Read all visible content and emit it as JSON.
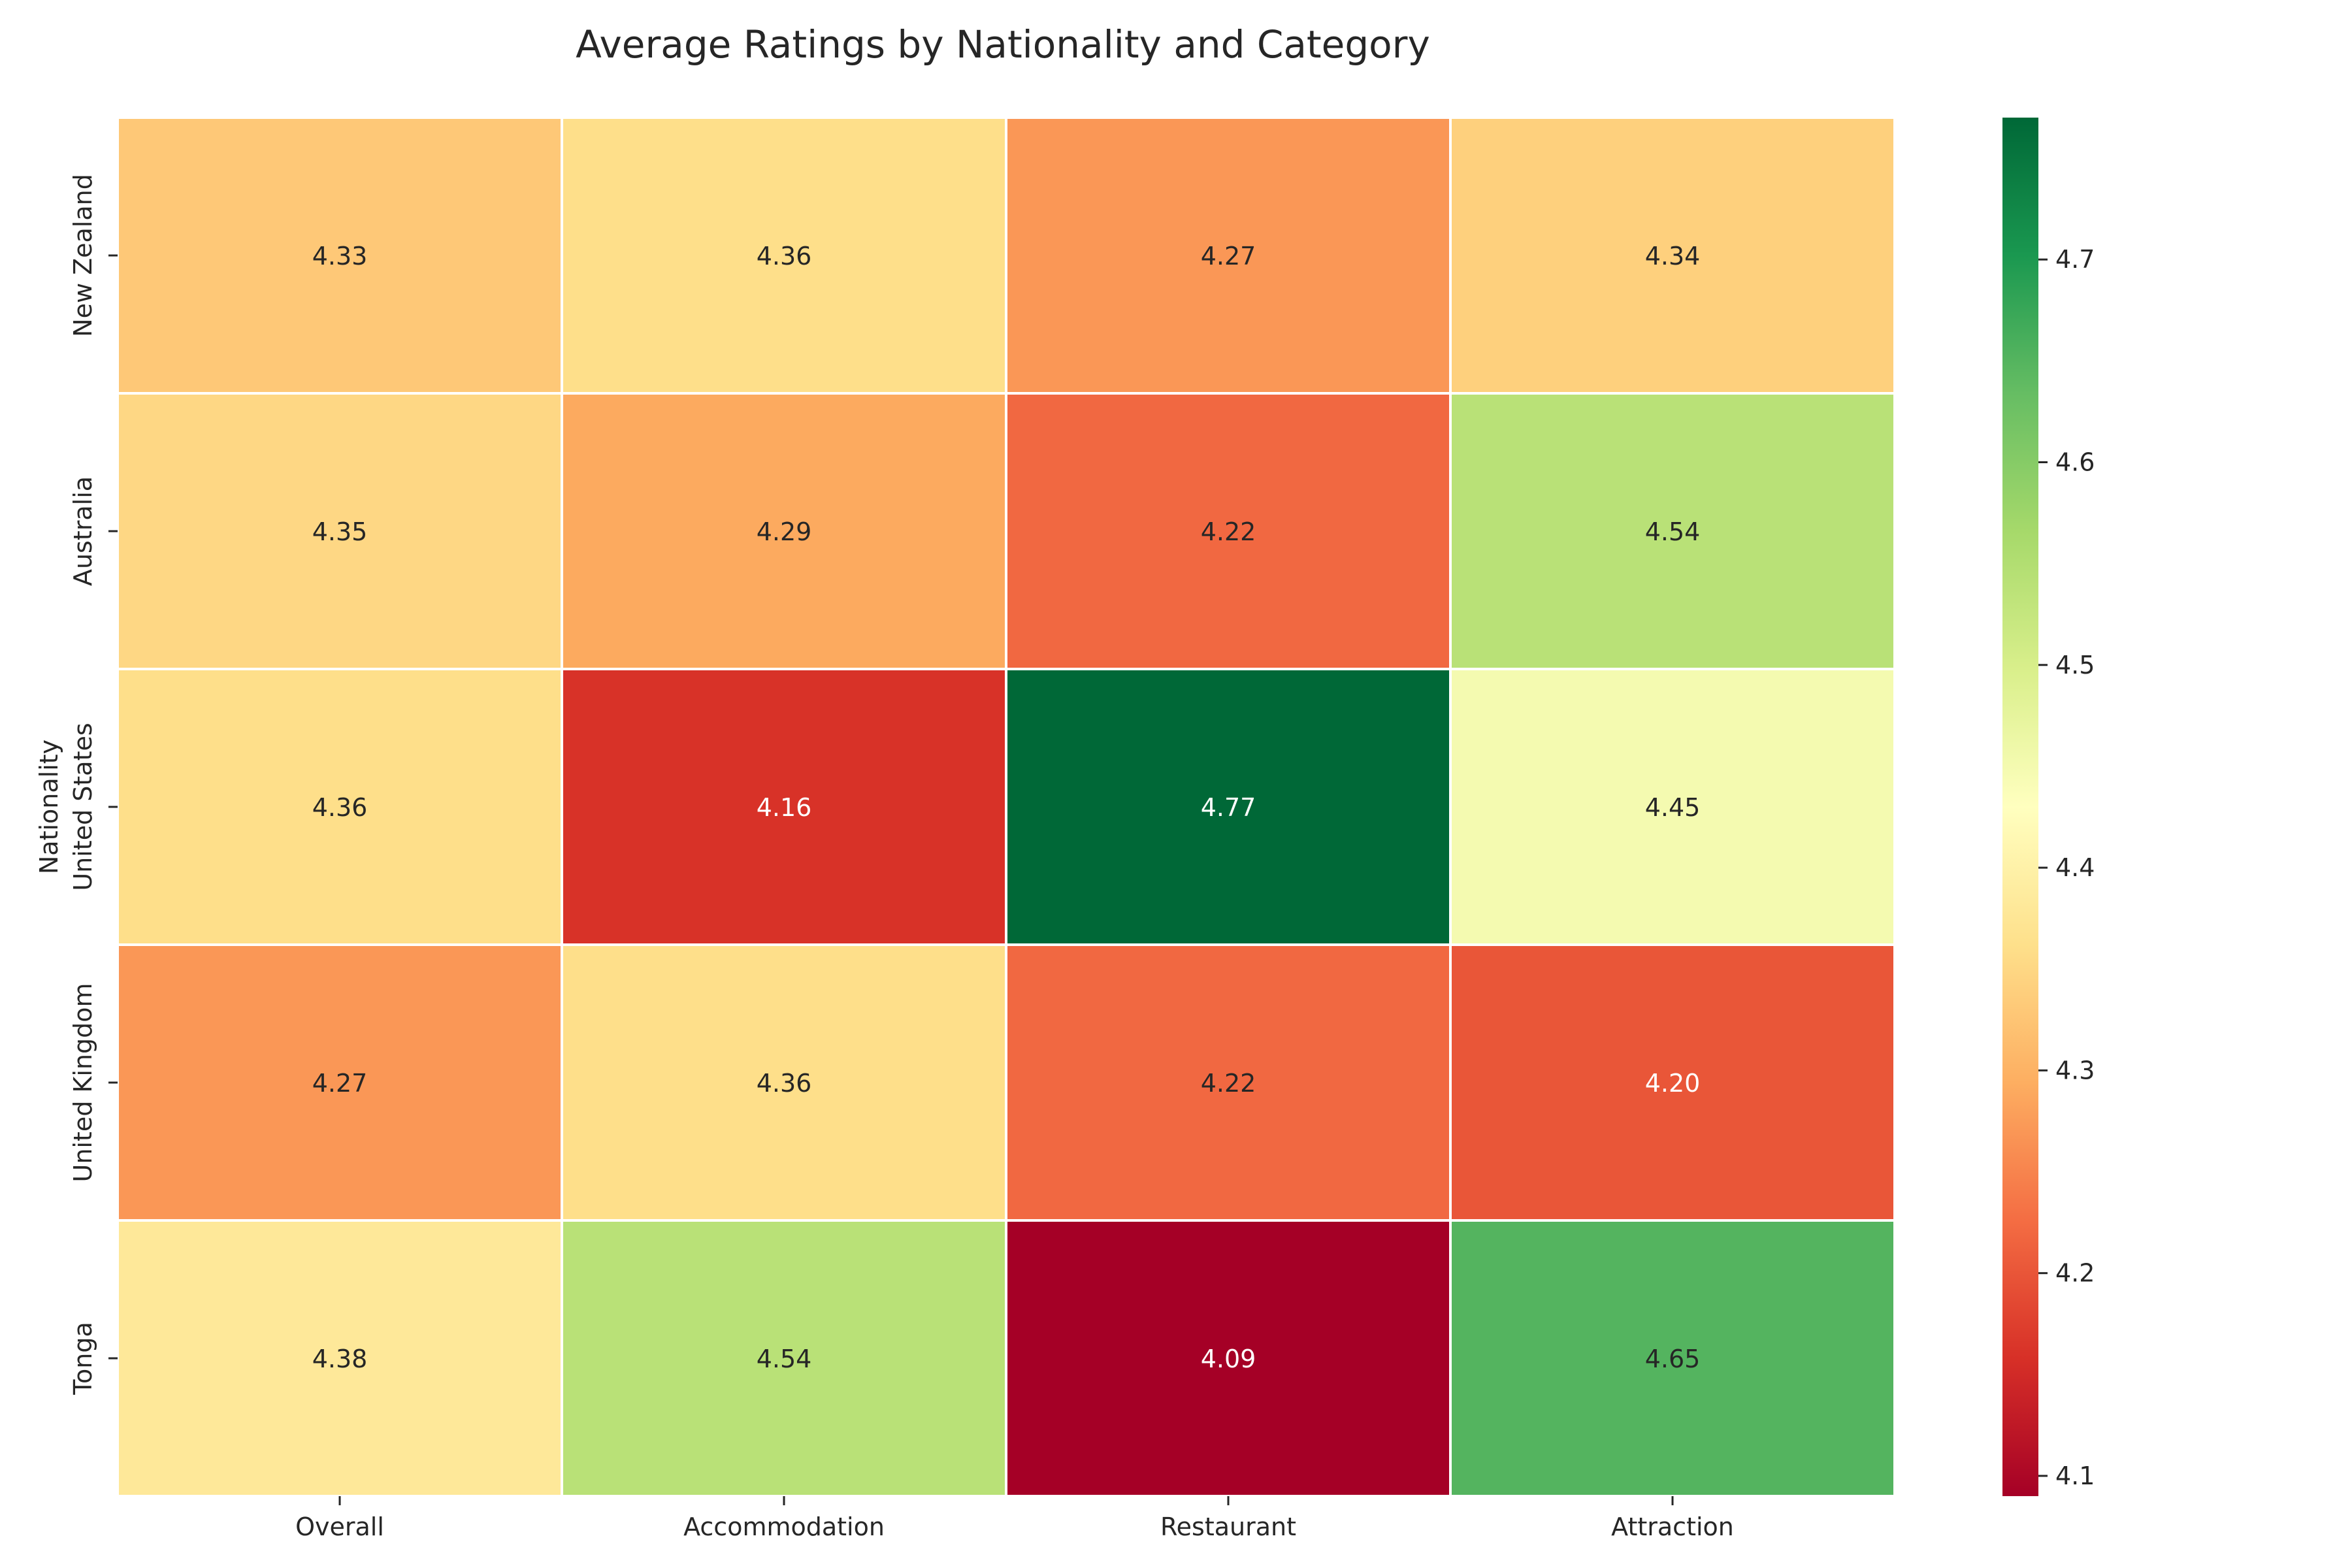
{
  "chart_data": {
    "type": "heatmap",
    "title": "Average Ratings by Nationality and Category",
    "xlabel": "",
    "ylabel": "Nationality",
    "categories": [
      "Overall",
      "Accommodation",
      "Restaurant",
      "Attraction"
    ],
    "rows": [
      "New Zealand",
      "Australia",
      "United States",
      "United Kingdom",
      "Tonga"
    ],
    "values": [
      [
        4.33,
        4.36,
        4.27,
        4.34
      ],
      [
        4.35,
        4.29,
        4.22,
        4.54
      ],
      [
        4.36,
        4.16,
        4.77,
        4.45
      ],
      [
        4.27,
        4.36,
        4.22,
        4.2
      ],
      [
        4.38,
        4.54,
        4.09,
        4.65
      ]
    ],
    "colorbar": {
      "min": 4.09,
      "max": 4.77,
      "ticks": [
        "4.1",
        "4.2",
        "4.3",
        "4.4",
        "4.5",
        "4.6",
        "4.7"
      ],
      "colormap": "RdYlGn"
    },
    "annotation_format": "0.00",
    "colors": {
      "colormap": [
        "#a50026",
        "#d73027",
        "#f46d43",
        "#fdae61",
        "#fee08b",
        "#ffffbf",
        "#d9ef8b",
        "#a6d96a",
        "#66bd63",
        "#1a9850",
        "#006837"
      ],
      "cell_border": "#ffffff",
      "text_dark": "#262626",
      "text_light": "#ffffff"
    }
  }
}
